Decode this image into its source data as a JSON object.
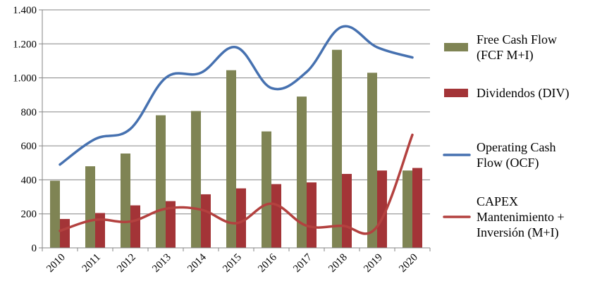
{
  "chart_data": {
    "type": "bar",
    "title": "",
    "xlabel": "",
    "ylabel": "",
    "ylim": [
      0,
      1400
    ],
    "yticks": [
      0,
      200,
      400,
      600,
      800,
      1000,
      1200,
      1400
    ],
    "ytick_labels": [
      "0",
      "200",
      "400",
      "600",
      "800",
      "1.000",
      "1.200",
      "1.400"
    ],
    "categories": [
      "2010",
      "2011",
      "2012",
      "2013",
      "2014",
      "2015",
      "2016",
      "2017",
      "2018",
      "2019",
      "2020"
    ],
    "grid": true,
    "legend_position": "right",
    "series": [
      {
        "name": "Free Cash Flow (FCF M+I)",
        "legend_lines": [
          "Free Cash Flow",
          "(FCF M+I)"
        ],
        "kind": "bar",
        "color": "#7f8454",
        "values": [
          395,
          480,
          555,
          780,
          805,
          1045,
          685,
          890,
          1165,
          1030,
          455
        ]
      },
      {
        "name": "Dividendos (DIV)",
        "legend_lines": [
          "Dividendos (DIV)"
        ],
        "kind": "bar",
        "color": "#a33437",
        "values": [
          170,
          205,
          250,
          275,
          315,
          350,
          375,
          385,
          435,
          455,
          470
        ]
      },
      {
        "name": "Operating Cash Flow (OCF)",
        "legend_lines": [
          "Operating Cash",
          "Flow (OCF)"
        ],
        "kind": "line",
        "color": "#4671b0",
        "values": [
          490,
          640,
          700,
          1000,
          1030,
          1180,
          940,
          1035,
          1300,
          1180,
          1120
        ]
      },
      {
        "name": "CAPEX Mantenimiento + Inversión (M+I)",
        "legend_lines": [
          "CAPEX",
          "Mantenimiento +",
          "Inversión (M+I)"
        ],
        "kind": "line",
        "color": "#b3413f",
        "values": [
          100,
          165,
          155,
          230,
          225,
          145,
          260,
          130,
          130,
          125,
          665
        ]
      }
    ]
  }
}
